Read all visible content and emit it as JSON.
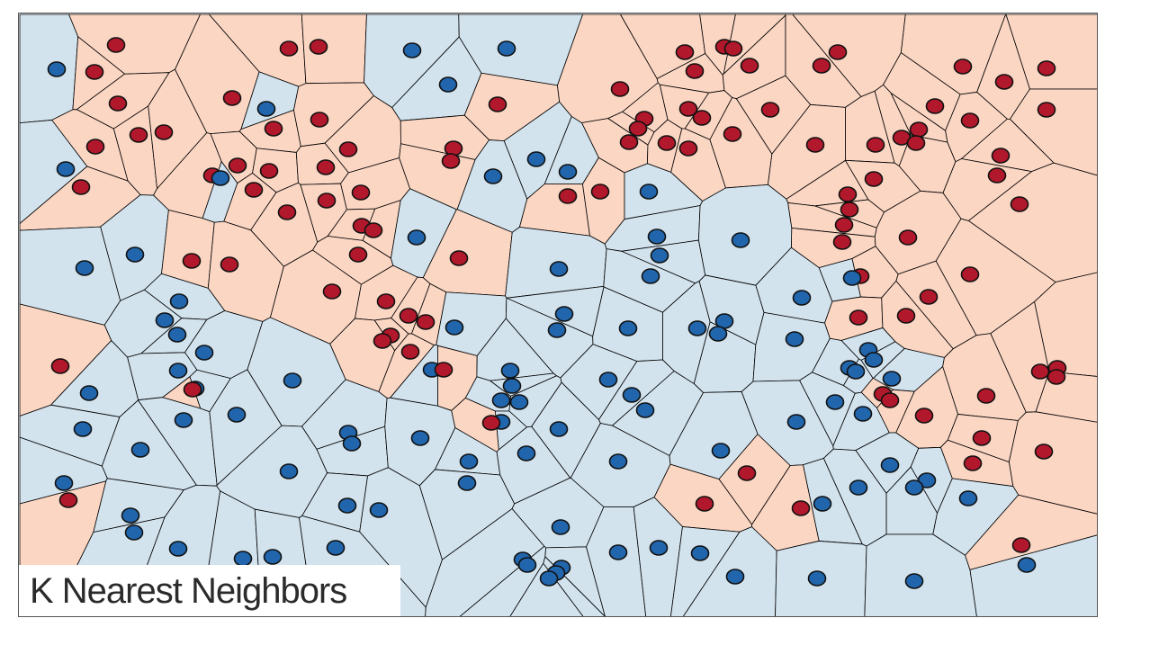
{
  "title": "K Nearest Neighbors",
  "colors": {
    "red_region": "#fbd6c3",
    "blue_region": "#d2e3ee",
    "red_point": "#b2182b",
    "blue_point": "#2166ac",
    "edge": "#000000",
    "caption_text": "#2b2b2b"
  },
  "classes": [
    "red",
    "blue"
  ],
  "points": [
    [
      "blue",
      62,
      76
    ],
    [
      "red",
      128,
      49
    ],
    [
      "red",
      104,
      79
    ],
    [
      "red",
      130,
      114
    ],
    [
      "red",
      105,
      162
    ],
    [
      "red",
      153,
      149
    ],
    [
      "red",
      181,
      146
    ],
    [
      "blue",
      72,
      187
    ],
    [
      "red",
      89,
      207
    ],
    [
      "red",
      320,
      53
    ],
    [
      "red",
      353,
      51
    ],
    [
      "red",
      257,
      108
    ],
    [
      "blue",
      295,
      120
    ],
    [
      "red",
      303,
      142
    ],
    [
      "red",
      354,
      132
    ],
    [
      "red",
      386,
      165
    ],
    [
      "red",
      263,
      183
    ],
    [
      "red",
      298,
      189
    ],
    [
      "red",
      235,
      194
    ],
    [
      "blue",
      244,
      197
    ],
    [
      "red",
      281,
      210
    ],
    [
      "red",
      361,
      185
    ],
    [
      "red",
      362,
      222
    ],
    [
      "red",
      400,
      213
    ],
    [
      "red",
      318,
      235
    ],
    [
      "red",
      401,
      250
    ],
    [
      "red",
      414,
      255
    ],
    [
      "red",
      397,
      282
    ],
    [
      "blue",
      457,
      55
    ],
    [
      "blue",
      562,
      53
    ],
    [
      "blue",
      497,
      93
    ],
    [
      "red",
      552,
      115
    ],
    [
      "red",
      503,
      164
    ],
    [
      "red",
      500,
      178
    ],
    [
      "blue",
      595,
      176
    ],
    [
      "blue",
      547,
      195
    ],
    [
      "blue",
      630,
      190
    ],
    [
      "red",
      630,
      217
    ],
    [
      "red",
      666,
      212
    ],
    [
      "blue",
      720,
      212
    ],
    [
      "blue",
      462,
      263
    ],
    [
      "red",
      509,
      286
    ],
    [
      "red",
      760,
      57
    ],
    [
      "red",
      804,
      51
    ],
    [
      "red",
      814,
      53
    ],
    [
      "red",
      771,
      78
    ],
    [
      "red",
      832,
      72
    ],
    [
      "red",
      688,
      98
    ],
    [
      "red",
      764,
      120
    ],
    [
      "red",
      779,
      130
    ],
    [
      "red",
      715,
      131
    ],
    [
      "red",
      708,
      142
    ],
    [
      "red",
      698,
      157
    ],
    [
      "red",
      740,
      158
    ],
    [
      "red",
      764,
      164
    ],
    [
      "red",
      813,
      148
    ],
    [
      "red",
      855,
      121
    ],
    [
      "red",
      930,
      57
    ],
    [
      "red",
      912,
      72
    ],
    [
      "red",
      1069,
      73
    ],
    [
      "red",
      1115,
      90
    ],
    [
      "red",
      1162,
      75
    ],
    [
      "red",
      1038,
      117
    ],
    [
      "red",
      1077,
      133
    ],
    [
      "red",
      1162,
      121
    ],
    [
      "red",
      905,
      160
    ],
    [
      "red",
      972,
      160
    ],
    [
      "red",
      1001,
      152
    ],
    [
      "red",
      1020,
      143
    ],
    [
      "red",
      1017,
      158
    ],
    [
      "red",
      1111,
      172
    ],
    [
      "red",
      970,
      198
    ],
    [
      "red",
      1107,
      194
    ],
    [
      "red",
      941,
      215
    ],
    [
      "red",
      943,
      232
    ],
    [
      "red",
      937,
      249
    ],
    [
      "red",
      935,
      268
    ],
    [
      "red",
      1132,
      226
    ],
    [
      "red",
      1008,
      263
    ],
    [
      "blue",
      93,
      297
    ],
    [
      "blue",
      149,
      282
    ],
    [
      "red",
      212,
      289
    ],
    [
      "red",
      254,
      293
    ],
    [
      "blue",
      198,
      334
    ],
    [
      "blue",
      182,
      355
    ],
    [
      "blue",
      196,
      371
    ],
    [
      "blue",
      226,
      391
    ],
    [
      "red",
      66,
      406
    ],
    [
      "blue",
      197,
      411
    ],
    [
      "blue",
      216,
      431
    ],
    [
      "red",
      213,
      432
    ],
    [
      "blue",
      98,
      436
    ],
    [
      "blue",
      91,
      476
    ],
    [
      "blue",
      203,
      466
    ],
    [
      "blue",
      262,
      460
    ],
    [
      "blue",
      155,
      499
    ],
    [
      "blue",
      324,
      422
    ],
    [
      "blue",
      70,
      536
    ],
    [
      "red",
      75,
      555
    ],
    [
      "blue",
      144,
      572
    ],
    [
      "blue",
      148,
      591
    ],
    [
      "blue",
      197,
      609
    ],
    [
      "blue",
      269,
      620
    ],
    [
      "blue",
      302,
      618
    ],
    [
      "blue",
      372,
      608
    ],
    [
      "red",
      368,
      323
    ],
    [
      "red",
      428,
      334
    ],
    [
      "red",
      453,
      350
    ],
    [
      "red",
      472,
      357
    ],
    [
      "red",
      433,
      372
    ],
    [
      "red",
      424,
      378
    ],
    [
      "red",
      455,
      390
    ],
    [
      "blue",
      504,
      363
    ],
    [
      "blue",
      479,
      410
    ],
    [
      "red",
      492,
      410
    ],
    [
      "blue",
      386,
      480
    ],
    [
      "blue",
      390,
      492
    ],
    [
      "blue",
      466,
      486
    ],
    [
      "blue",
      320,
      523
    ],
    [
      "blue",
      385,
      561
    ],
    [
      "blue",
      420,
      566
    ],
    [
      "blue",
      520,
      512
    ],
    [
      "blue",
      518,
      536
    ],
    [
      "blue",
      620,
      298
    ],
    [
      "blue",
      729,
      262
    ],
    [
      "blue",
      732,
      283
    ],
    [
      "blue",
      722,
      306
    ],
    [
      "blue",
      822,
      266
    ],
    [
      "blue",
      626,
      348
    ],
    [
      "blue",
      618,
      366
    ],
    [
      "blue",
      697,
      364
    ],
    [
      "blue",
      774,
      364
    ],
    [
      "blue",
      804,
      356
    ],
    [
      "blue",
      797,
      370
    ],
    [
      "blue",
      566,
      411
    ],
    [
      "blue",
      568,
      428
    ],
    [
      "blue",
      556,
      444
    ],
    [
      "blue",
      576,
      446
    ],
    [
      "blue",
      556,
      468
    ],
    [
      "red",
      545,
      469
    ],
    [
      "blue",
      620,
      476
    ],
    [
      "blue",
      584,
      503
    ],
    [
      "blue",
      675,
      421
    ],
    [
      "blue",
      701,
      438
    ],
    [
      "blue",
      716,
      455
    ],
    [
      "blue",
      686,
      512
    ],
    [
      "blue",
      800,
      500
    ],
    [
      "red",
      829,
      525
    ],
    [
      "red",
      782,
      559
    ],
    [
      "blue",
      890,
      330
    ],
    [
      "red",
      955,
      306
    ],
    [
      "blue",
      946,
      308
    ],
    [
      "red",
      1077,
      304
    ],
    [
      "red",
      1031,
      329
    ],
    [
      "red",
      953,
      352
    ],
    [
      "red",
      1006,
      350
    ],
    [
      "blue",
      882,
      376
    ],
    [
      "blue",
      964,
      388
    ],
    [
      "blue",
      970,
      399
    ],
    [
      "blue",
      943,
      408
    ],
    [
      "blue",
      950,
      412
    ],
    [
      "blue",
      990,
      420
    ],
    [
      "red",
      980,
      437
    ],
    [
      "red",
      988,
      444
    ],
    [
      "blue",
      927,
      446
    ],
    [
      "red",
      1095,
      439
    ],
    [
      "red",
      1155,
      412
    ],
    [
      "red",
      1174,
      408
    ],
    [
      "red",
      1173,
      418
    ],
    [
      "blue",
      958,
      459
    ],
    [
      "red",
      1026,
      461
    ],
    [
      "blue",
      884,
      468
    ],
    [
      "red",
      1090,
      486
    ],
    [
      "red",
      1159,
      501
    ],
    [
      "red",
      1080,
      514
    ],
    [
      "blue",
      988,
      516
    ],
    [
      "blue",
      1029,
      533
    ],
    [
      "blue",
      1015,
      541
    ],
    [
      "blue",
      953,
      541
    ],
    [
      "blue",
      913,
      559
    ],
    [
      "red",
      889,
      564
    ],
    [
      "blue",
      1075,
      553
    ],
    [
      "blue",
      622,
      585
    ],
    [
      "blue",
      580,
      621
    ],
    [
      "blue",
      585,
      627
    ],
    [
      "blue",
      623,
      630
    ],
    [
      "blue",
      617,
      636
    ],
    [
      "blue",
      609,
      642
    ],
    [
      "blue",
      686,
      613
    ],
    [
      "blue",
      731,
      608
    ],
    [
      "blue",
      777,
      614
    ],
    [
      "blue",
      816,
      640
    ],
    [
      "blue",
      907,
      642
    ],
    [
      "blue",
      1015,
      645
    ],
    [
      "red",
      1134,
      605
    ],
    [
      "blue",
      1140,
      627
    ]
  ]
}
